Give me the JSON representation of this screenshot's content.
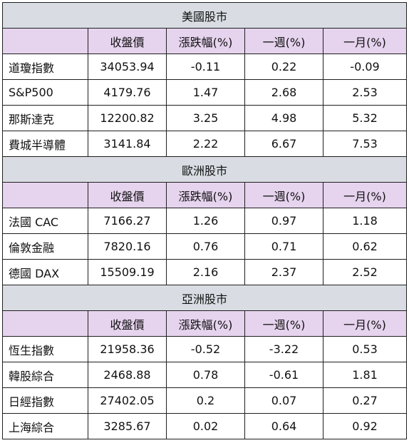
{
  "sections": [
    {
      "title": "美國股市",
      "headers": [
        "",
        "收盤價",
        "漲跌幅(%)",
        "一週(%)",
        "一月(%)"
      ],
      "rows": [
        [
          "道瓊指數",
          "34053.94",
          "-0.11",
          "0.22",
          "-0.09"
        ],
        [
          "S&P500",
          "4179.76",
          "1.47",
          "2.68",
          "2.53"
        ],
        [
          "那斯達克",
          "12200.82",
          "3.25",
          "4.98",
          "5.32"
        ],
        [
          "費城半導體",
          "3141.84",
          "2.22",
          "6.67",
          "7.53"
        ]
      ]
    },
    {
      "title": "歐洲股市",
      "headers": [
        "",
        "收盤價",
        "漲跌幅(%)",
        "一週(%)",
        "一月(%)"
      ],
      "rows": [
        [
          "法國 CAC",
          "7166.27",
          "1.26",
          "0.97",
          "1.18"
        ],
        [
          "倫敦金融",
          "7820.16",
          "0.76",
          "0.71",
          "0.62"
        ],
        [
          "德國 DAX",
          "15509.19",
          "2.16",
          "2.37",
          "2.52"
        ]
      ]
    },
    {
      "title": "亞洲股市",
      "headers": [
        "",
        "收盤價",
        "漲跌幅(%)",
        "一週(%)",
        "一月(%)"
      ],
      "rows": [
        [
          "恆生指數",
          "21958.36",
          "-0.52",
          "-3.22",
          "0.53"
        ],
        [
          "韓股綜合",
          "2468.88",
          "0.78",
          "-0.61",
          "1.81"
        ],
        [
          "日經指數",
          "27402.05",
          "0.2",
          "0.07",
          "0.27"
        ],
        [
          "上海綜合",
          "3285.67",
          "0.02",
          "0.64",
          "0.92"
        ]
      ]
    }
  ],
  "colors": {
    "region_bg": "#d9dde3",
    "header_bg": "#e6d3ee",
    "border": "#1f1f1f"
  }
}
